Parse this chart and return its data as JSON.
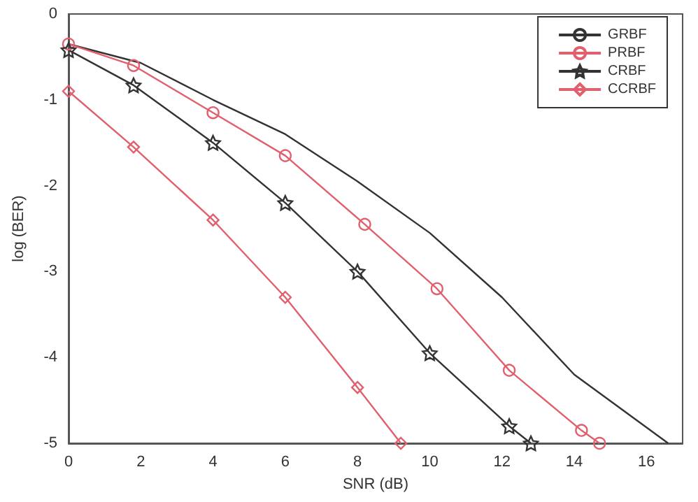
{
  "chart_data": {
    "type": "line",
    "xlabel": "SNR (dB)",
    "ylabel": "log (BER)",
    "xlim": [
      0,
      17
    ],
    "xticks": [
      0,
      2,
      4,
      6,
      8,
      10,
      12,
      14,
      16
    ],
    "ylim": [
      -5,
      0
    ],
    "yticks": [
      -5,
      -4,
      -3,
      -2,
      -1,
      0
    ],
    "grid": false,
    "legend": "top right",
    "series": [
      {
        "name": "GRBF",
        "color": "#333333",
        "marker": "none",
        "x": [
          0,
          2,
          4,
          6,
          8,
          10,
          12,
          14,
          16.6
        ],
        "values": [
          -0.35,
          -0.57,
          -1.0,
          -1.4,
          -1.95,
          -2.55,
          -3.3,
          -4.2,
          -5
        ]
      },
      {
        "name": "PRBF",
        "color": "#e0606e",
        "marker": "circle",
        "x": [
          0,
          1.8,
          4,
          6,
          8.2,
          10.2,
          12.2,
          14.2,
          14.7
        ],
        "values": [
          -0.35,
          -0.6,
          -1.15,
          -1.65,
          -2.45,
          -3.2,
          -4.15,
          -4.85,
          -5
        ]
      },
      {
        "name": "CRBF",
        "color": "#333333",
        "marker": "star",
        "x": [
          0,
          1.8,
          4,
          6,
          8,
          10,
          12.2,
          12.8
        ],
        "values": [
          -0.42,
          -0.83,
          -1.5,
          -2.2,
          -3.0,
          -3.95,
          -4.8,
          -5
        ]
      },
      {
        "name": "CCRBF",
        "color": "#e0606e",
        "marker": "diamond",
        "x": [
          0,
          1.8,
          4,
          6,
          8,
          9.2
        ],
        "values": [
          -0.9,
          -1.55,
          -2.4,
          -3.3,
          -4.35,
          -5
        ]
      }
    ]
  }
}
